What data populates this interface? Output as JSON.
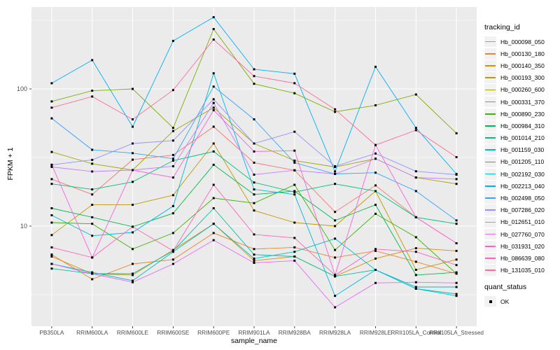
{
  "legend": {
    "tracking_title": "tracking_id",
    "quant_title": "quant_status",
    "quant_value": "OK"
  },
  "chart_data": {
    "type": "line",
    "title": "",
    "xlabel": "sample_name",
    "ylabel": "FPKM + 1",
    "scale": "log10",
    "grid": "on",
    "legend_position": "right",
    "panel_bg": "#EBEBEB",
    "key_bg": "#F2F2F2",
    "marker": "black-square",
    "ylim": [
      1.9,
      410
    ],
    "y_major": [
      10,
      100
    ],
    "y_tick_labels": [
      "10",
      "100"
    ],
    "y_minor": [
      3.162,
      31.62,
      316.2
    ],
    "categories": [
      "PB350LA",
      "RRIM600LA",
      "RRIM600LE",
      "RRIM600SE",
      "RRIM600PE",
      "RRIM901LA",
      "RRIM928BA",
      "RRIM928LA",
      "RRIM928LE",
      "RRII105LA_Control",
      "RRII105LA_Stressed"
    ],
    "series": [
      {
        "name": "Hb_000098_050",
        "color": "#F8766D",
        "values": [
          22,
          17,
          30.5,
          33,
          53,
          29,
          25.5,
          12.7,
          19.8,
          11.6,
          7.5
        ]
      },
      {
        "name": "Hb_000130_180",
        "color": "#EA8331",
        "values": [
          6.2,
          4.1,
          5.3,
          5.7,
          8.9,
          6.8,
          7.0,
          5.9,
          6.6,
          5.5,
          4.5
        ]
      },
      {
        "name": "Hb_000140_350",
        "color": "#D89000",
        "values": [
          6.0,
          4.5,
          4.4,
          6.7,
          10.4,
          5.6,
          6.0,
          4.3,
          5.8,
          6.9,
          6.6
        ]
      },
      {
        "name": "Hb_000193_300",
        "color": "#C09B00",
        "values": [
          8.6,
          14.3,
          14.3,
          16.8,
          40,
          13,
          10.6,
          10,
          18,
          4.8,
          5.7
        ]
      },
      {
        "name": "Hb_000260_600",
        "color": "#A3A500",
        "values": [
          34.7,
          28.5,
          25.6,
          49.3,
          73,
          40,
          30,
          27,
          31,
          22.6,
          20.3
        ]
      },
      {
        "name": "Hb_000331_370",
        "color": "#7CAE00",
        "values": [
          81,
          97,
          100,
          52,
          273,
          109,
          93,
          68,
          76,
          91,
          47.5
        ]
      },
      {
        "name": "Hb_000890_230",
        "color": "#39B600",
        "values": [
          10.6,
          10.4,
          6.8,
          8.9,
          16,
          14.7,
          20,
          6.7,
          12.3,
          8.3,
          4.5
        ]
      },
      {
        "name": "Hb_000984_310",
        "color": "#00BB4E",
        "values": [
          13.5,
          11.6,
          9.9,
          12.4,
          28,
          17,
          18,
          11,
          14.3,
          4.4,
          4.6
        ]
      },
      {
        "name": "Hb_001014_210",
        "color": "#00BF7D",
        "values": [
          20.3,
          18.5,
          21,
          30,
          35,
          20.8,
          17.7,
          20.3,
          18,
          11.6,
          10.4
        ]
      },
      {
        "name": "Hb_001159_030",
        "color": "#00C1A3",
        "values": [
          4.9,
          4.5,
          4.5,
          6.6,
          13.5,
          6.2,
          6.0,
          4.3,
          4.8,
          3.5,
          3.1
        ]
      },
      {
        "name": "Hb_001205_110",
        "color": "#00BFC4",
        "values": [
          5.3,
          4.6,
          4.0,
          6.5,
          10.4,
          5.8,
          6.5,
          8.1,
          4.8,
          3.6,
          3.6
        ]
      },
      {
        "name": "Hb_002192_030",
        "color": "#00BAE0",
        "values": [
          12,
          8.5,
          9.0,
          14,
          130,
          18.5,
          17,
          3.1,
          4.8,
          3.5,
          3.2
        ]
      },
      {
        "name": "Hb_002213_040",
        "color": "#00B0F6",
        "values": [
          110,
          162,
          53,
          224,
          333,
          139,
          129,
          25,
          145,
          52,
          24
        ]
      },
      {
        "name": "Hb_002498_050",
        "color": "#35A2FF",
        "values": [
          61,
          36,
          34,
          31,
          104,
          60,
          29,
          24,
          24.5,
          18,
          11
        ]
      },
      {
        "name": "Hb_007286_020",
        "color": "#9590FF",
        "values": [
          28,
          30.4,
          40,
          42,
          84,
          40,
          48.7,
          27.3,
          33.8,
          25.1,
          23.7
        ]
      },
      {
        "name": "Hb_012651_010",
        "color": "#C77CFF",
        "values": [
          27,
          25,
          25.6,
          27.3,
          79,
          23.7,
          25.5,
          24,
          31,
          22.6,
          22
        ]
      },
      {
        "name": "Hb_027760_070",
        "color": "#E76BF3",
        "values": [
          5.3,
          4.5,
          3.9,
          5.3,
          7.9,
          5.4,
          5.6,
          2.56,
          3.85,
          3.9,
          3.85
        ]
      },
      {
        "name": "Hb_031931_020",
        "color": "#FA62DB",
        "values": [
          28,
          5.9,
          25.6,
          22.6,
          70,
          35,
          35.5,
          4.4,
          39,
          11.6,
          7.5
        ]
      },
      {
        "name": "Hb_086639_080",
        "color": "#FF62BC",
        "values": [
          7.0,
          5.9,
          9.9,
          6.6,
          20,
          8.7,
          8.2,
          4.4,
          6.8,
          6.5,
          5.2
        ]
      },
      {
        "name": "Hb_131035_010",
        "color": "#FF6A98",
        "values": [
          73,
          88,
          60,
          98,
          229,
          124,
          110,
          71,
          39,
          50,
          31.8
        ]
      }
    ]
  }
}
